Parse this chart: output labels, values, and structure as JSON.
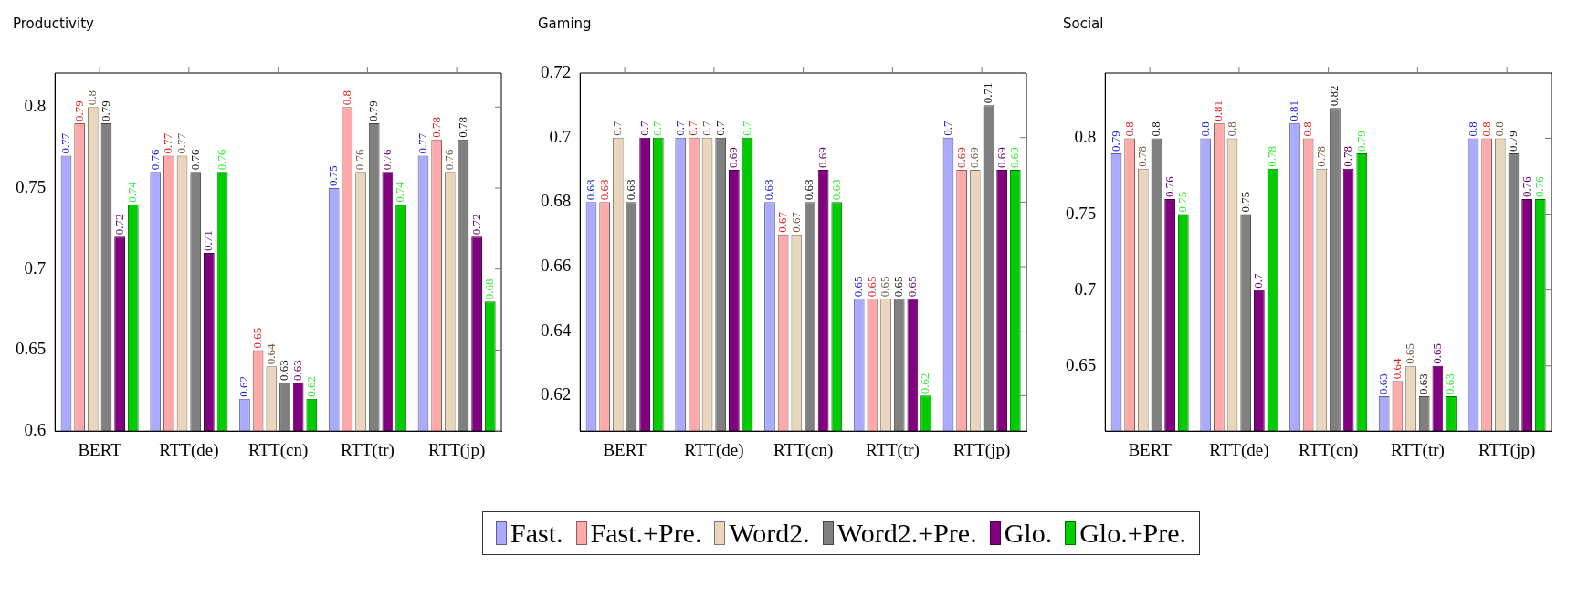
{
  "chart_data": [
    {
      "type": "bar",
      "title": "Productivity",
      "categories": [
        "BERT",
        "RTT(de)",
        "RTT(cn)",
        "RTT(tr)",
        "RTT(jp)"
      ],
      "ylim": [
        0.6,
        0.821
      ],
      "yticks": [
        0.6,
        0.65,
        0.7,
        0.75,
        0.8
      ],
      "data_labels": true,
      "legend": "bottom",
      "grid": false,
      "series": [
        {
          "name": "Fast.",
          "color": "#aaaaff",
          "values": [
            0.77,
            0.76,
            0.62,
            0.75,
            0.77
          ]
        },
        {
          "name": "Fast.+Pre.",
          "color": "#ffaaaa",
          "values": [
            0.79,
            0.77,
            0.65,
            0.8,
            0.78
          ]
        },
        {
          "name": "Word2.",
          "color": "#ead5bd",
          "values": [
            0.8,
            0.77,
            0.64,
            0.76,
            0.76
          ]
        },
        {
          "name": "Word2.+Pre.",
          "color": "#808080",
          "values": [
            0.79,
            0.76,
            0.63,
            0.79,
            0.78
          ]
        },
        {
          "name": "Glo.",
          "color": "#800080",
          "values": [
            0.72,
            0.71,
            0.63,
            0.76,
            0.72
          ]
        },
        {
          "name": "Glo.+Pre.",
          "color": "#00cc00",
          "values": [
            0.74,
            0.76,
            0.62,
            0.74,
            0.68
          ]
        }
      ]
    },
    {
      "type": "bar",
      "title": "Gaming",
      "categories": [
        "BERT",
        "RTT(de)",
        "RTT(cn)",
        "RTT(tr)",
        "RTT(jp)"
      ],
      "ylim": [
        0.609,
        0.72
      ],
      "yticks": [
        0.62,
        0.64,
        0.66,
        0.68,
        0.7,
        0.72
      ],
      "data_labels": true,
      "grid": false,
      "series": [
        {
          "color": "#aaaaff",
          "values": [
            0.68,
            0.7,
            0.68,
            0.65,
            0.7
          ]
        },
        {
          "color": "#ffaaaa",
          "values": [
            0.68,
            0.7,
            0.67,
            0.65,
            0.69
          ]
        },
        {
          "color": "#ead5bd",
          "values": [
            0.7,
            0.7,
            0.67,
            0.65,
            0.69
          ]
        },
        {
          "color": "#808080",
          "values": [
            0.68,
            0.7,
            0.68,
            0.65,
            0.71
          ]
        },
        {
          "color": "#800080",
          "values": [
            0.7,
            0.69,
            0.69,
            0.65,
            0.69
          ]
        },
        {
          "color": "#00cc00",
          "values": [
            0.7,
            0.7,
            0.68,
            0.62,
            0.69
          ]
        }
      ]
    },
    {
      "type": "bar",
      "title": "Social",
      "categories": [
        "BERT",
        "RTT(de)",
        "RTT(cn)",
        "RTT(tr)",
        "RTT(jp)"
      ],
      "ylim": [
        0.607,
        0.843
      ],
      "yticks": [
        0.65,
        0.7,
        0.75,
        0.8
      ],
      "data_labels": true,
      "grid": false,
      "series": [
        {
          "color": "#aaaaff",
          "values": [
            0.79,
            0.8,
            0.81,
            0.63,
            0.8
          ]
        },
        {
          "color": "#ffaaaa",
          "values": [
            0.8,
            0.81,
            0.8,
            0.64,
            0.8
          ]
        },
        {
          "color": "#ead5bd",
          "values": [
            0.78,
            0.8,
            0.78,
            0.65,
            0.8
          ]
        },
        {
          "color": "#808080",
          "values": [
            0.8,
            0.75,
            0.82,
            0.63,
            0.79
          ]
        },
        {
          "color": "#800080",
          "values": [
            0.76,
            0.7,
            0.78,
            0.65,
            0.76
          ]
        },
        {
          "color": "#00cc00",
          "values": [
            0.75,
            0.78,
            0.79,
            0.63,
            0.76
          ]
        }
      ]
    }
  ]
}
